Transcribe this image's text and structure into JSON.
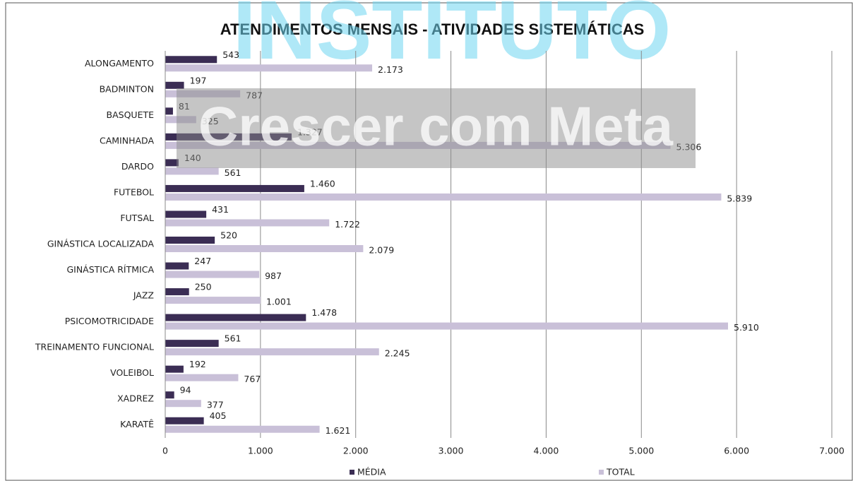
{
  "chart_data": {
    "type": "barh",
    "title": "ATENDIMENTOS MENSAIS - ATIVIDADES SISTEMÁTICAS",
    "watermark": [
      "INSTITUTO",
      "Crescer com Meta"
    ],
    "categories": [
      "ALONGAMENTO",
      "BADMINTON",
      "BASQUETE",
      "CAMINHADA",
      "DARDO",
      "FUTEBOL",
      "FUTSAL",
      "GINÁSTICA LOCALIZADA",
      "GINÁSTICA RÍTMICA",
      "JAZZ",
      "PSICOMOTRICIDADE",
      "TREINAMENTO FUNCIONAL",
      "VOLEIBOL",
      "XADREZ",
      "KARATÊ"
    ],
    "series": [
      {
        "name": "MÉDIA",
        "color": "#3b2d54",
        "values": [
          543,
          197,
          81,
          1327,
          140,
          1460,
          431,
          520,
          247,
          250,
          1478,
          561,
          192,
          94,
          405
        ],
        "value_labels": [
          "543",
          "197",
          "81",
          "1.327",
          "140",
          "1.460",
          "431",
          "520",
          "247",
          "250",
          "1.478",
          "561",
          "192",
          "94",
          "405"
        ]
      },
      {
        "name": "TOTAL",
        "color": "#c9c0d8",
        "values": [
          2173,
          787,
          325,
          5306,
          561,
          5839,
          1722,
          2079,
          987,
          1001,
          5910,
          2245,
          767,
          377,
          1621
        ],
        "value_labels": [
          "2.173",
          "787",
          "325",
          "5.306",
          "561",
          "5.839",
          "1.722",
          "2.079",
          "987",
          "1.001",
          "5.910",
          "2.245",
          "767",
          "377",
          "1.621"
        ]
      }
    ],
    "xlim": [
      0,
      7000
    ],
    "xticks": [
      0,
      {
        "value": 1000,
        "label": "1.000"
      },
      {
        "value": 2000,
        "label": "2.000"
      },
      {
        "value": 3000,
        "label": "3.000"
      },
      {
        "value": 4000,
        "label": "4.000"
      },
      {
        "value": 5000,
        "label": "5.000"
      },
      {
        "value": 6000,
        "label": "6.000"
      },
      {
        "value": 7000,
        "label": "7.000"
      }
    ],
    "grid": true,
    "legend": "bottom"
  }
}
